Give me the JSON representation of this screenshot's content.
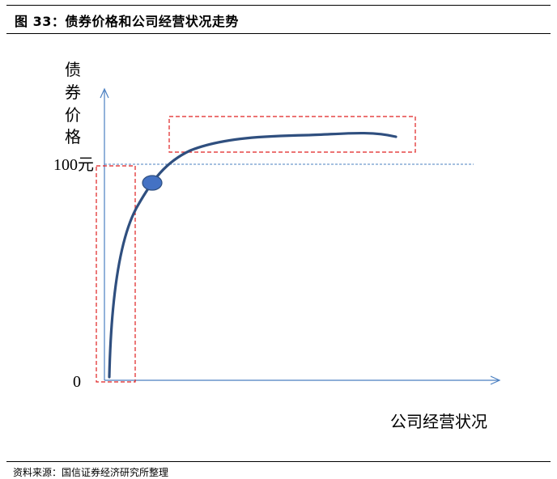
{
  "header": {
    "title": "图 33：债券价格和公司经营状况走势"
  },
  "diagram": {
    "y_axis_label_chars": [
      "债",
      "券",
      "价",
      "格"
    ],
    "y_tick_100": "100元",
    "y_tick_0": "0",
    "x_axis_label": "公司经营状况"
  },
  "footer": {
    "source": "资料来源：国信证券经济研究所整理"
  },
  "colors": {
    "axis": "#4a7fc1",
    "curve": "#2f4f7f",
    "marker_fill": "#4472c4",
    "marker_stroke": "#2f4f7f",
    "highlight_box": "#e02020",
    "reference_line": "#4a7fc1"
  }
}
